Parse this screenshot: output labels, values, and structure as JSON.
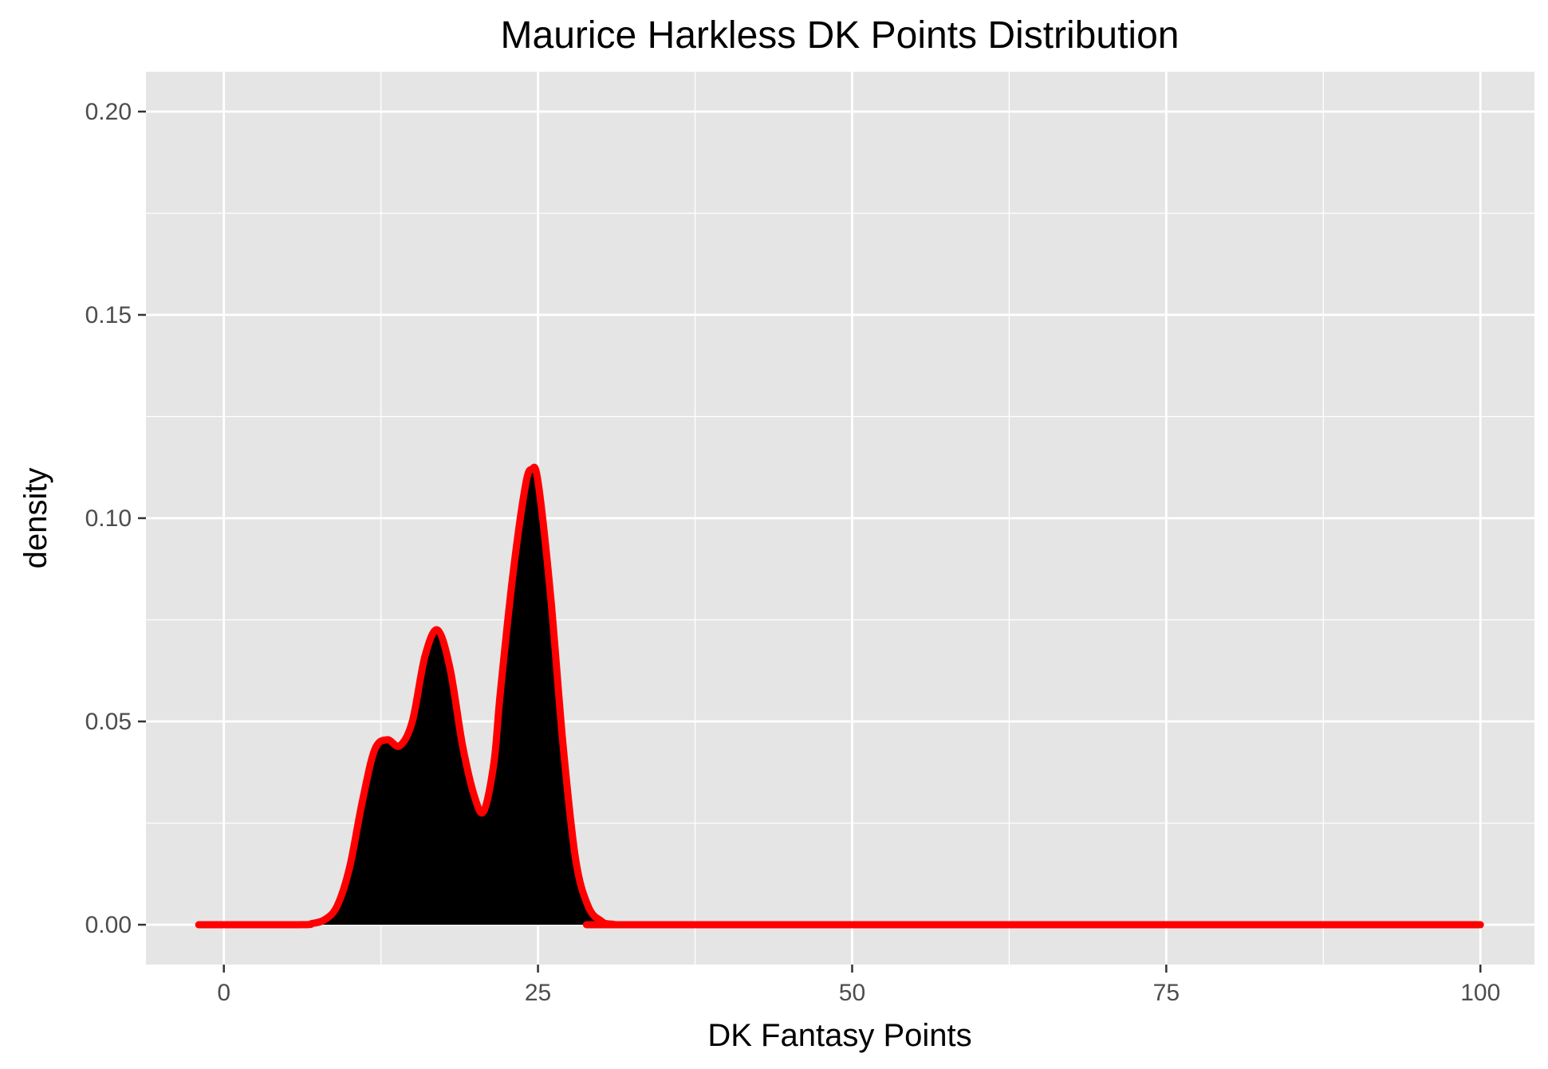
{
  "chart_data": {
    "type": "area",
    "title": "Maurice Harkless DK Points Distribution",
    "xlabel": "DK Fantasy Points",
    "ylabel": "density",
    "xlim": [
      -6.2,
      104.3
    ],
    "ylim": [
      -0.0098,
      0.2098
    ],
    "x_ticks": [
      0,
      25,
      50,
      75,
      100
    ],
    "x_tick_labels": [
      "0",
      "25",
      "50",
      "75",
      "100"
    ],
    "y_ticks": [
      0.0,
      0.05,
      0.1,
      0.15,
      0.2
    ],
    "y_tick_labels": [
      "0.00",
      "0.05",
      "0.10",
      "0.15",
      "0.20"
    ],
    "grid": true,
    "legend": "none",
    "series": [
      {
        "fill_color": "#000000",
        "line_color": "#ff0000",
        "x": [
          -2.0,
          6.0,
          7.0,
          8.0,
          9.0,
          10.0,
          11.0,
          12.0,
          13.0,
          14.0,
          15.0,
          16.0,
          17.0,
          18.0,
          19.0,
          20.0,
          20.7,
          21.5,
          22.0,
          23.0,
          24.0,
          24.5,
          25.0,
          26.0,
          27.0,
          28.0,
          29.0,
          30.0,
          31.0,
          35.0,
          100.0
        ],
        "values": [
          0.0,
          0.0,
          0.0003,
          0.0012,
          0.0045,
          0.014,
          0.03,
          0.043,
          0.0455,
          0.044,
          0.05,
          0.066,
          0.0725,
          0.063,
          0.044,
          0.031,
          0.028,
          0.04,
          0.057,
          0.086,
          0.108,
          0.112,
          0.109,
          0.081,
          0.044,
          0.016,
          0.0045,
          0.001,
          0.0001,
          0.0,
          0.0
        ]
      }
    ]
  }
}
